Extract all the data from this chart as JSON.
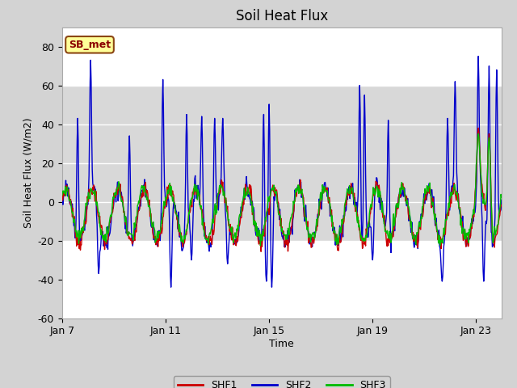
{
  "title": "Soil Heat Flux",
  "xlabel": "Time",
  "ylabel": "Soil Heat Flux (W/m2)",
  "ylim": [
    -60,
    90
  ],
  "yticks": [
    -60,
    -40,
    -20,
    0,
    20,
    40,
    60,
    80
  ],
  "x_tick_labels": [
    "Jan 7",
    "Jan 11",
    "Jan 15",
    "Jan 19",
    "Jan 23"
  ],
  "shf1_color": "#cc0000",
  "shf2_color": "#0000cc",
  "shf3_color": "#00bb00",
  "fig_bg_color": "#d3d3d3",
  "plot_bg_color": "#ffffff",
  "shaded_band_color": "#d8d8d8",
  "station_label": "SB_met",
  "station_box_color": "#ffff99",
  "station_box_edge": "#8B4513",
  "station_text_color": "#8B0000",
  "line_width": 1.0,
  "shaded_band_lower": -20,
  "shaded_band_upper": 60,
  "legend_labels": [
    "SHF1",
    "SHF2",
    "SHF3"
  ]
}
